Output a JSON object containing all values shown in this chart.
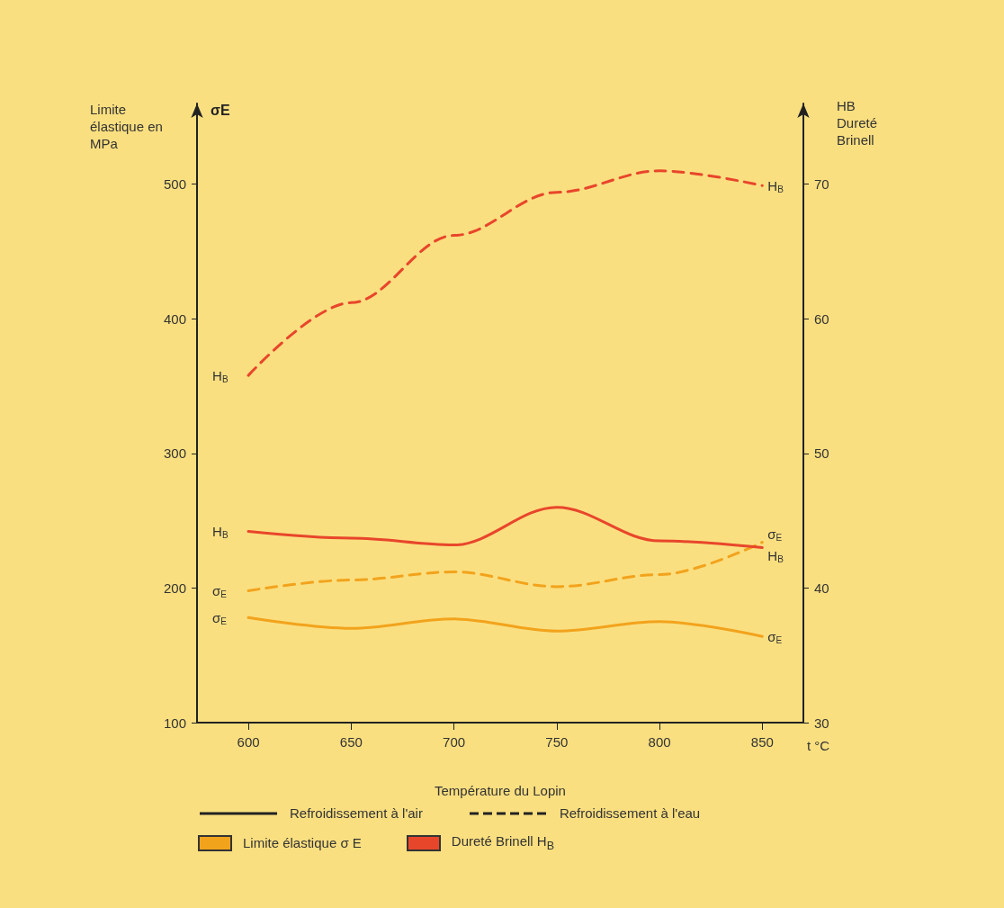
{
  "chart_data": {
    "type": "line",
    "xlabel": "Température du Lopin",
    "ylabel": "Limite élastique en MPa",
    "y2label": "HB Dureté Brinell",
    "x": [
      600,
      650,
      700,
      750,
      800,
      850
    ],
    "xlim": [
      575,
      870
    ],
    "xticks": [
      600,
      650,
      700,
      750,
      800,
      850
    ],
    "ylim": [
      100,
      560
    ],
    "yticks": [
      100,
      200,
      300,
      400,
      500
    ],
    "y2lim": [
      30,
      76
    ],
    "y2ticks": [
      30,
      40,
      50,
      60,
      70
    ],
    "marker": "none",
    "series": [
      {
        "name": "σ$_{E}$",
        "color": "#f2a31c",
        "line_style": "solid",
        "axis": "y",
        "values": [
          178,
          170,
          177,
          168,
          175,
          164
        ]
      },
      {
        "name": "σ$_{E}$",
        "color": "#f2a31c",
        "line_style": "dashed",
        "axis": "y",
        "values": [
          198,
          206,
          212,
          201,
          210,
          234
        ]
      },
      {
        "name": "H$_{B}$",
        "color": "#e8462b",
        "line_style": "solid",
        "axis": "y2",
        "values": [
          44.2,
          43.7,
          43.2,
          46.0,
          43.5,
          43.0
        ]
      },
      {
        "name": "H$_{B}$",
        "color": "#e8462b",
        "line_style": "dashed",
        "axis": "y2",
        "values": [
          55.8,
          61.2,
          66.2,
          69.4,
          71.0,
          69.9
        ]
      }
    ],
    "annotations": [
      "σE",
      "t °C",
      "Refroidissement à l'air",
      "Refroidissement à l'eau",
      "Limite élastique σ E",
      "Dureté Brinell H$_{B}$"
    ]
  }
}
